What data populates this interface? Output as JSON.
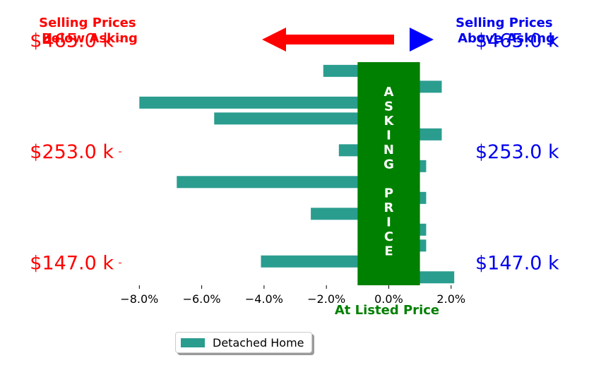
{
  "header": {
    "left_title": [
      "Selling Prices",
      "Below Asking"
    ],
    "right_title": [
      "Selling Prices",
      "Above Asking"
    ],
    "left_color": "#ff0000",
    "right_color": "#0000ee",
    "arrow_left_color": "#ff0000",
    "arrow_right_color": "#0000ff",
    "arrow_left_icon": "arrow-left-icon",
    "arrow_right_icon": "triangle-right-icon"
  },
  "chart_data": {
    "type": "bar",
    "orientation": "horizontal",
    "series": [
      {
        "name": "Detached Home",
        "color": "#2a9d8f",
        "values": [
          2.1,
          -4.1,
          1.2,
          1.2,
          -2.5,
          1.2,
          -6.8,
          1.2,
          -1.6,
          1.7,
          -5.6,
          -8.0,
          1.7,
          -2.1
        ]
      }
    ],
    "xlim": [
      -8.8,
      2.3
    ],
    "xticks": [
      -8,
      -6,
      -4,
      -2,
      0,
      2
    ],
    "xtick_labels": [
      "−8.0%",
      "−6.0%",
      "−4.0%",
      "−2.0%",
      "0.0%",
      "2.0%"
    ],
    "xlabel": "At Listed Price",
    "xlabel_color": "#008000",
    "yticks": [
      {
        "index": 0.9,
        "label": "$147.0 k"
      },
      {
        "index": 7.9,
        "label": "$253.0 k"
      },
      {
        "index": 14.9,
        "label": "$465.0 k"
      }
    ],
    "asking_band": {
      "x_range": [
        -1.0,
        1.0
      ],
      "color": "#008000",
      "label_top": [
        "A",
        "S",
        "K",
        "I",
        "N",
        "G"
      ],
      "label_bottom": [
        "P",
        "R",
        "I",
        "C",
        "E"
      ]
    },
    "legend": {
      "placement": "bottom-left-outside"
    }
  }
}
